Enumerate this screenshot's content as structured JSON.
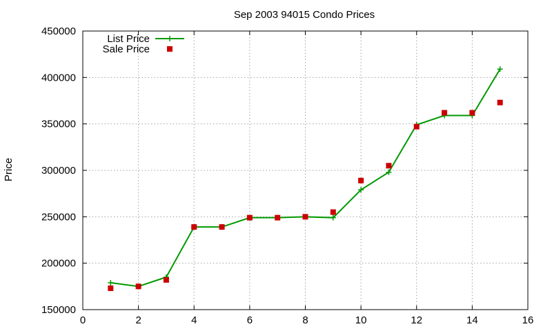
{
  "chart_data": {
    "type": "line",
    "title": "Sep 2003 94015 Condo Prices",
    "xlabel": "",
    "ylabel": "Price",
    "xlim": [
      0,
      16
    ],
    "ylim": [
      150000,
      450000
    ],
    "x_ticks": [
      0,
      2,
      4,
      6,
      8,
      10,
      12,
      14,
      16
    ],
    "y_ticks": [
      150000,
      200000,
      250000,
      300000,
      350000,
      400000,
      450000
    ],
    "grid": true,
    "legend_position": "top-left",
    "series": [
      {
        "name": "List Price",
        "style": "line-with-plus-markers",
        "color": "#009900",
        "x": [
          1,
          2,
          3,
          4,
          5,
          6,
          7,
          8,
          9,
          10,
          11,
          12,
          13,
          14,
          15
        ],
        "values": [
          179000,
          175000,
          185000,
          239000,
          239000,
          249000,
          249000,
          250000,
          249000,
          279000,
          298000,
          349000,
          359000,
          359000,
          409000
        ]
      },
      {
        "name": "Sale Price",
        "style": "square-markers",
        "color": "#cc0000",
        "x": [
          1,
          2,
          3,
          4,
          5,
          6,
          7,
          8,
          9,
          10,
          11,
          12,
          13,
          14,
          15
        ],
        "values": [
          173000,
          175000,
          182000,
          239000,
          239000,
          249000,
          249000,
          250000,
          255000,
          289000,
          305000,
          347000,
          362000,
          362000,
          373000
        ]
      }
    ]
  }
}
